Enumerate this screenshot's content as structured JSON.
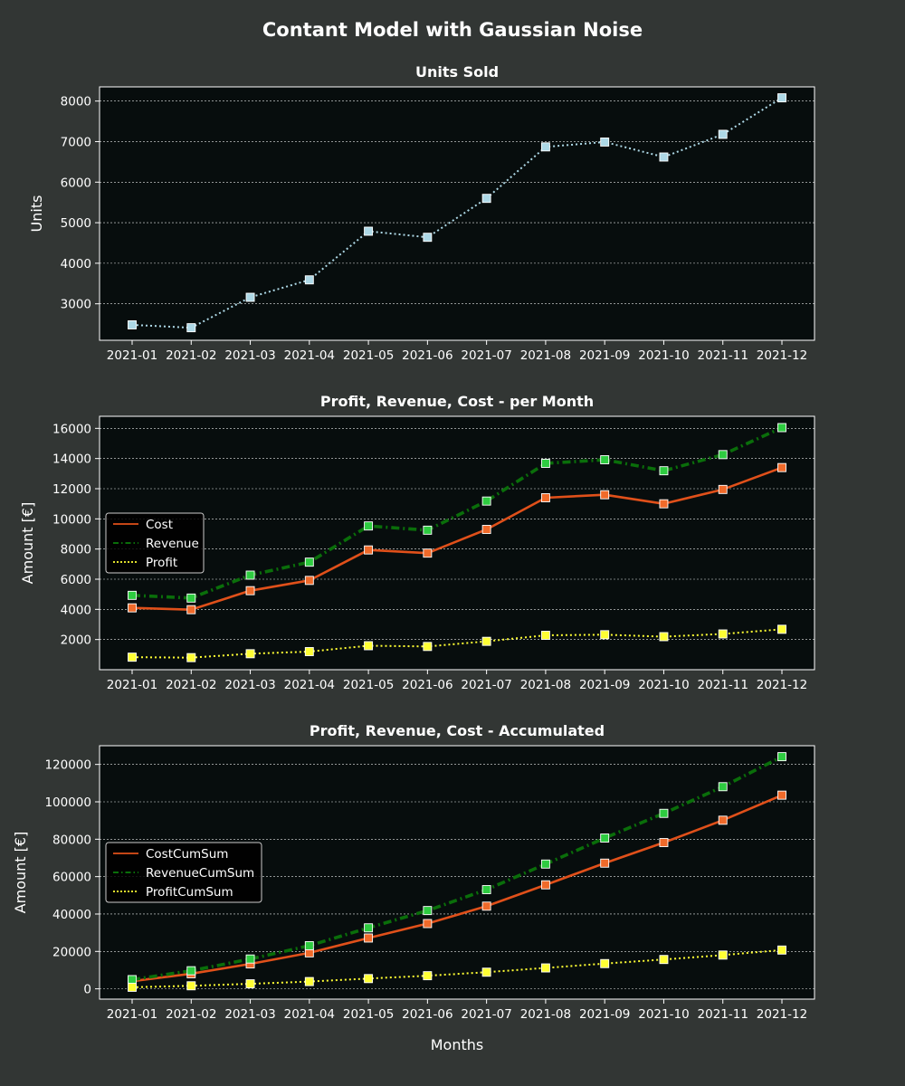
{
  "figure": {
    "title": "Contant Model with Gaussian Noise",
    "xlabel": "Months",
    "background": "#323634",
    "axes_background": "#070d0d"
  },
  "chart_data": [
    {
      "type": "line",
      "title": "Units Sold",
      "ylabel": "Units",
      "xlabel": "",
      "categories": [
        "2021-01",
        "2021-02",
        "2021-03",
        "2021-04",
        "2021-05",
        "2021-06",
        "2021-07",
        "2021-08",
        "2021-09",
        "2021-10",
        "2021-11",
        "2021-12"
      ],
      "ylim": [
        2100,
        8350
      ],
      "yticks": [
        3000,
        4000,
        5000,
        6000,
        7000,
        8000
      ],
      "ytick_labels": [
        "3000",
        "4000",
        "5000",
        "6000",
        "7000",
        "8000"
      ],
      "grid": "horizontal, dotted",
      "legend": "none",
      "series": [
        {
          "values": [
            2480,
            2410,
            3160,
            3590,
            4790,
            4640,
            5600,
            6870,
            6990,
            6620,
            7180,
            8080
          ],
          "color": "#add8e6",
          "style": "dotted",
          "marker": "square",
          "marker_color": "#add8e6"
        }
      ]
    },
    {
      "type": "line",
      "title": "Profit, Revenue, Cost - per Month",
      "ylabel": "Amount [€]",
      "xlabel": "",
      "categories": [
        "2021-01",
        "2021-02",
        "2021-03",
        "2021-04",
        "2021-05",
        "2021-06",
        "2021-07",
        "2021-08",
        "2021-09",
        "2021-10",
        "2021-11",
        "2021-12"
      ],
      "ylim": [
        0,
        16800
      ],
      "yticks": [
        2000,
        4000,
        6000,
        8000,
        10000,
        12000,
        14000,
        16000
      ],
      "ytick_labels": [
        "2000",
        "4000",
        "6000",
        "8000",
        "10000",
        "12000",
        "14000",
        "16000"
      ],
      "grid": "horizontal, dotted",
      "legend": "center-left",
      "series": [
        {
          "name": "Cost",
          "values": [
            4100,
            3980,
            5240,
            5920,
            7940,
            7730,
            9300,
            11400,
            11600,
            11000,
            11950,
            13400
          ],
          "color": "#e0501a",
          "style": "solid",
          "marker": "square",
          "marker_color": "#f06a2a"
        },
        {
          "name": "Revenue",
          "values": [
            4930,
            4750,
            6270,
            7130,
            9530,
            9250,
            11180,
            13680,
            13920,
            13190,
            14260,
            16050
          ],
          "color": "#0a6e0a",
          "style": "dashdot",
          "marker": "square",
          "marker_color": "#2ecc40"
        },
        {
          "name": "Profit",
          "values": [
            830,
            800,
            1060,
            1200,
            1590,
            1540,
            1880,
            2280,
            2320,
            2190,
            2370,
            2680
          ],
          "color": "#ffff33",
          "style": "dotted",
          "marker": "square",
          "marker_color": "#ffff33"
        }
      ]
    },
    {
      "type": "line",
      "title": "Profit, Revenue, Cost - Accumulated",
      "ylabel": "Amount [€]",
      "xlabel": "Months",
      "categories": [
        "2021-01",
        "2021-02",
        "2021-03",
        "2021-04",
        "2021-05",
        "2021-06",
        "2021-07",
        "2021-08",
        "2021-09",
        "2021-10",
        "2021-11",
        "2021-12"
      ],
      "ylim": [
        -5500,
        130000
      ],
      "yticks": [
        0,
        20000,
        40000,
        60000,
        80000,
        100000,
        120000
      ],
      "ytick_labels": [
        "0",
        "20000",
        "40000",
        "60000",
        "80000",
        "100000",
        "120000"
      ],
      "grid": "horizontal, dotted",
      "legend": "center-left",
      "series": [
        {
          "name": "CostCumSum",
          "values": [
            4100,
            8080,
            13320,
            19240,
            27180,
            34910,
            44210,
            55610,
            67210,
            78210,
            90160,
            103560
          ],
          "color": "#e0501a",
          "style": "solid",
          "marker": "square",
          "marker_color": "#f06a2a"
        },
        {
          "name": "RevenueCumSum",
          "values": [
            4930,
            9680,
            15950,
            23080,
            32610,
            41860,
            53040,
            66720,
            80640,
            93830,
            108090,
            124140
          ],
          "color": "#0a6e0a",
          "style": "dashdot",
          "marker": "square",
          "marker_color": "#2ecc40"
        },
        {
          "name": "ProfitCumSum",
          "values": [
            830,
            1630,
            2690,
            3890,
            5480,
            7020,
            8900,
            11180,
            13500,
            15690,
            18060,
            20740
          ],
          "color": "#ffff33",
          "style": "dotted",
          "marker": "square",
          "marker_color": "#ffff33"
        }
      ]
    }
  ]
}
